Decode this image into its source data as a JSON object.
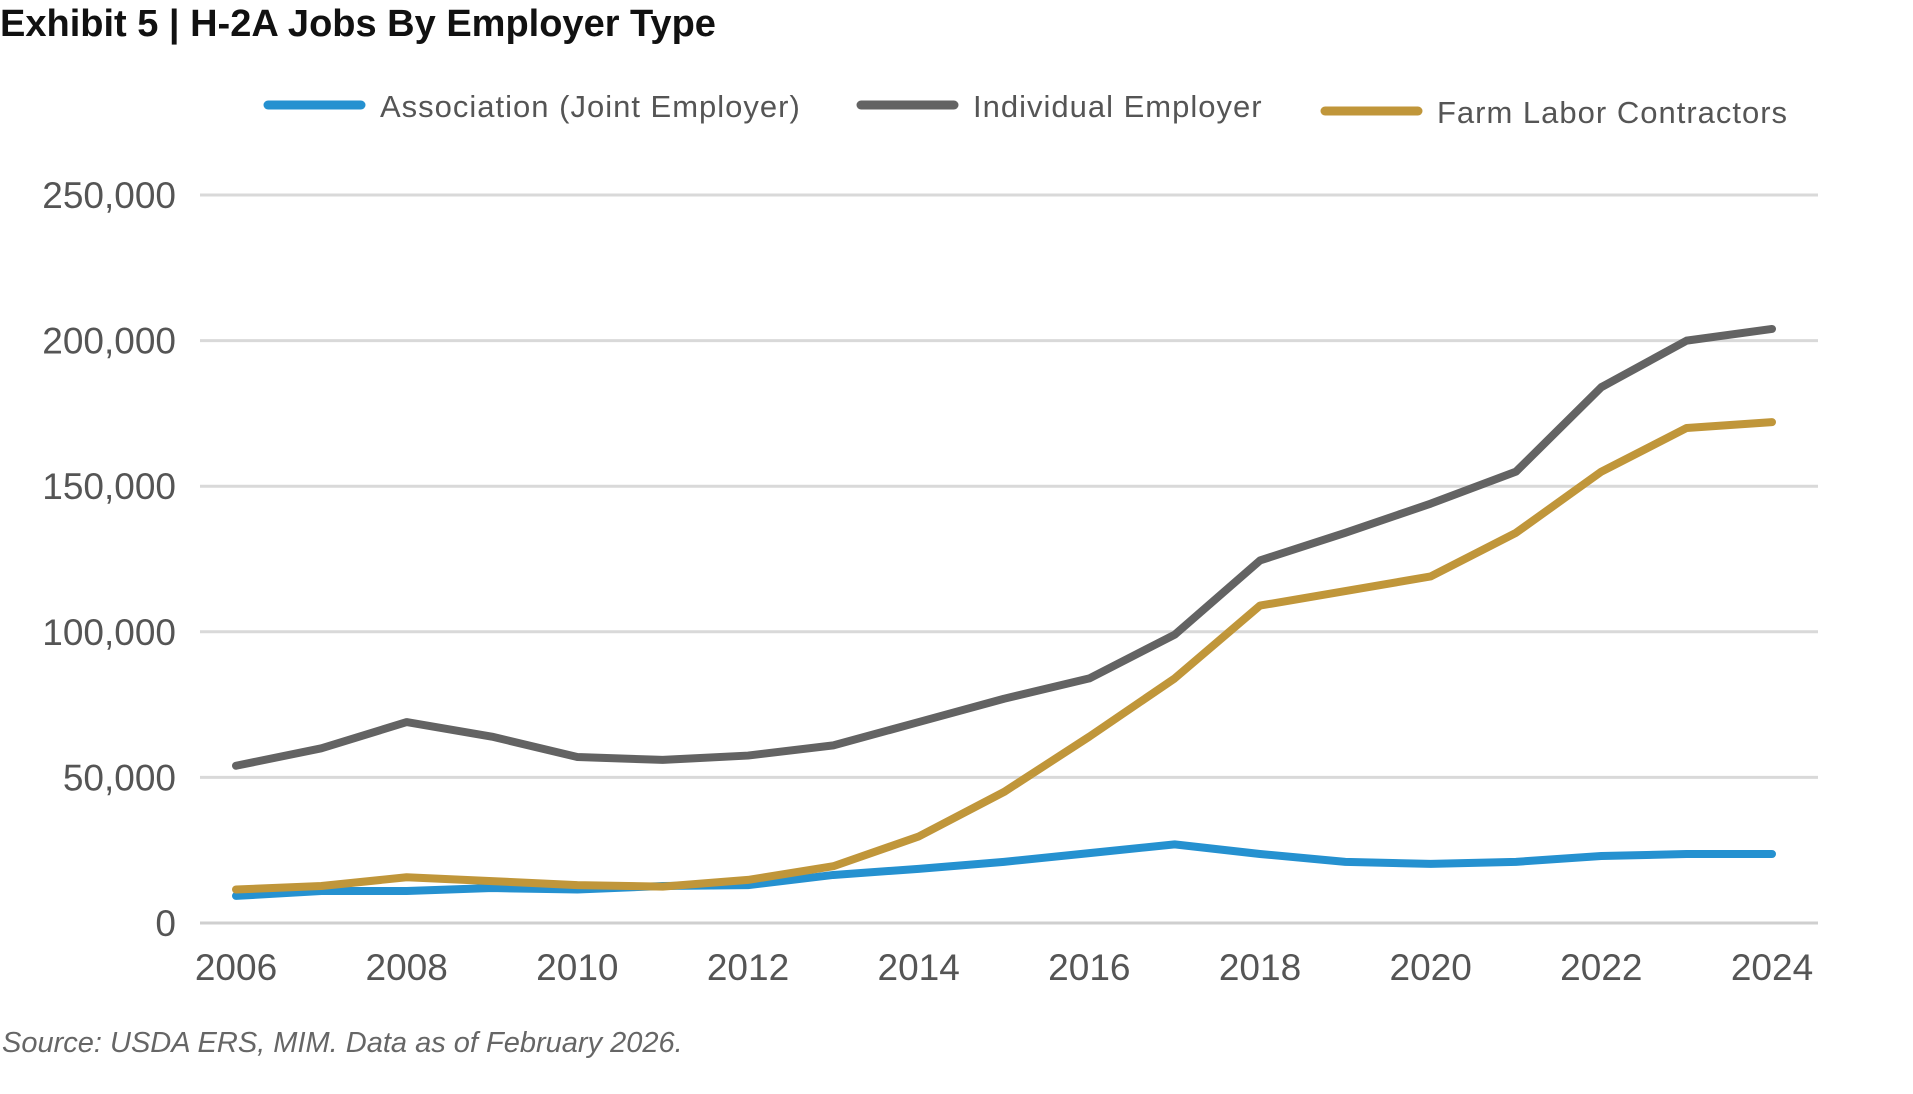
{
  "title": "Exhibit 5 | H-2A Jobs By Employer Type",
  "source": "Source: USDA ERS, MIM. Data as of February 2026.",
  "chart_data": {
    "type": "line",
    "title": "H-2A Jobs By Employer Type",
    "xlabel": "",
    "ylabel": "",
    "ylim": [
      0,
      250000
    ],
    "yticks": [
      0,
      50000,
      100000,
      150000,
      200000,
      250000
    ],
    "ytick_labels": [
      "0",
      "50,000",
      "100,000",
      "150,000",
      "200,000",
      "250,000"
    ],
    "xtick_labels": [
      "2006",
      "2008",
      "2010",
      "2012",
      "2014",
      "2016",
      "2018",
      "2020",
      "2022",
      "2024"
    ],
    "grid": true,
    "legend": "top",
    "x": [
      2006,
      2007,
      2008,
      2009,
      2010,
      2011,
      2012,
      2013,
      2014,
      2015,
      2016,
      2017,
      2018,
      2019,
      2020,
      2021,
      2022,
      2023,
      2024
    ],
    "series": [
      {
        "name": "Association (Joint Employer)",
        "color": "#2591d0",
        "values": [
          9300,
          11000,
          11000,
          12000,
          11500,
          12700,
          13000,
          16500,
          18600,
          21000,
          24000,
          27000,
          23700,
          21000,
          20300,
          21000,
          23000,
          23700,
          23700
        ]
      },
      {
        "name": "Individual Employer",
        "color": "#636363",
        "values": [
          54000,
          60000,
          69000,
          64000,
          57000,
          56000,
          57500,
          61000,
          69000,
          77000,
          84000,
          99000,
          124500,
          134000,
          144000,
          155000,
          184000,
          200000,
          204000
        ]
      },
      {
        "name": "Farm Labor Contractors",
        "color": "#c0963a",
        "values": [
          11500,
          12700,
          15700,
          14400,
          13000,
          12500,
          14800,
          19500,
          29700,
          45000,
          64000,
          84000,
          109000,
          114000,
          119000,
          134000,
          155000,
          170000,
          172000
        ]
      }
    ]
  }
}
